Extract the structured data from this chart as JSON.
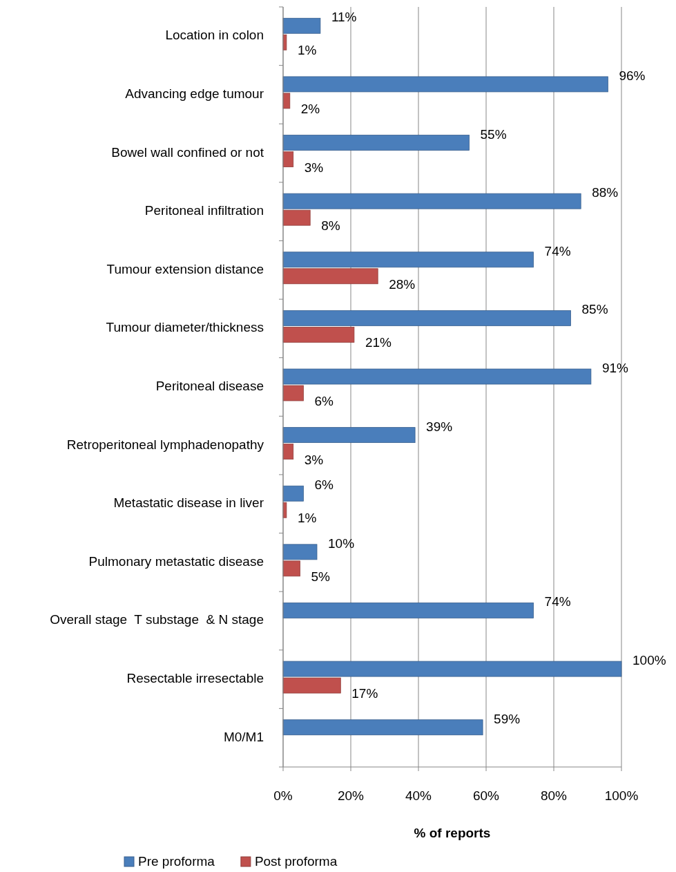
{
  "chart_data": {
    "type": "bar",
    "orientation": "horizontal",
    "xlabel": "% of reports",
    "categories": [
      "Location in colon",
      "Advancing edge tumour",
      "Bowel wall confined or not",
      "Peritoneal infiltration",
      "Tumour extension distance",
      "Tumour diameter/thickness",
      "Peritoneal disease",
      "Retroperitoneal lymphadenopathy",
      "Metastatic disease in liver",
      "Pulmonary metastatic disease",
      "Overall stage  T substage  & N stage",
      "Resectable irresectable",
      "M0/M1"
    ],
    "series": [
      {
        "name": "Pre proforma",
        "color": "#4a7ebb",
        "values": [
          11,
          96,
          55,
          88,
          74,
          85,
          91,
          39,
          6,
          10,
          74,
          100,
          59
        ],
        "value_labels": [
          "11%",
          "96%",
          "55%",
          "88%",
          "74%",
          "85%",
          "91%",
          "39%",
          "6%",
          "10%",
          "74%",
          "100%",
          "59%"
        ]
      },
      {
        "name": "Post proforma",
        "color": "#c0504d",
        "values": [
          1,
          2,
          3,
          8,
          28,
          21,
          6,
          3,
          1,
          5,
          null,
          17,
          null
        ],
        "value_labels": [
          "1%",
          "2%",
          "3%",
          "8%",
          "28%",
          "21%",
          "6%",
          "3%",
          "1%",
          "5%",
          null,
          "17%",
          null
        ]
      }
    ],
    "xlim": [
      0,
      100
    ],
    "xticks": [
      {
        "value": 0,
        "label": "0%"
      },
      {
        "value": 20,
        "label": "20%"
      },
      {
        "value": 40,
        "label": "40%"
      },
      {
        "value": 60,
        "label": "60%"
      },
      {
        "value": 80,
        "label": "80%"
      },
      {
        "value": 100,
        "label": "100%"
      }
    ],
    "grid": "x",
    "legend": "bottom"
  }
}
